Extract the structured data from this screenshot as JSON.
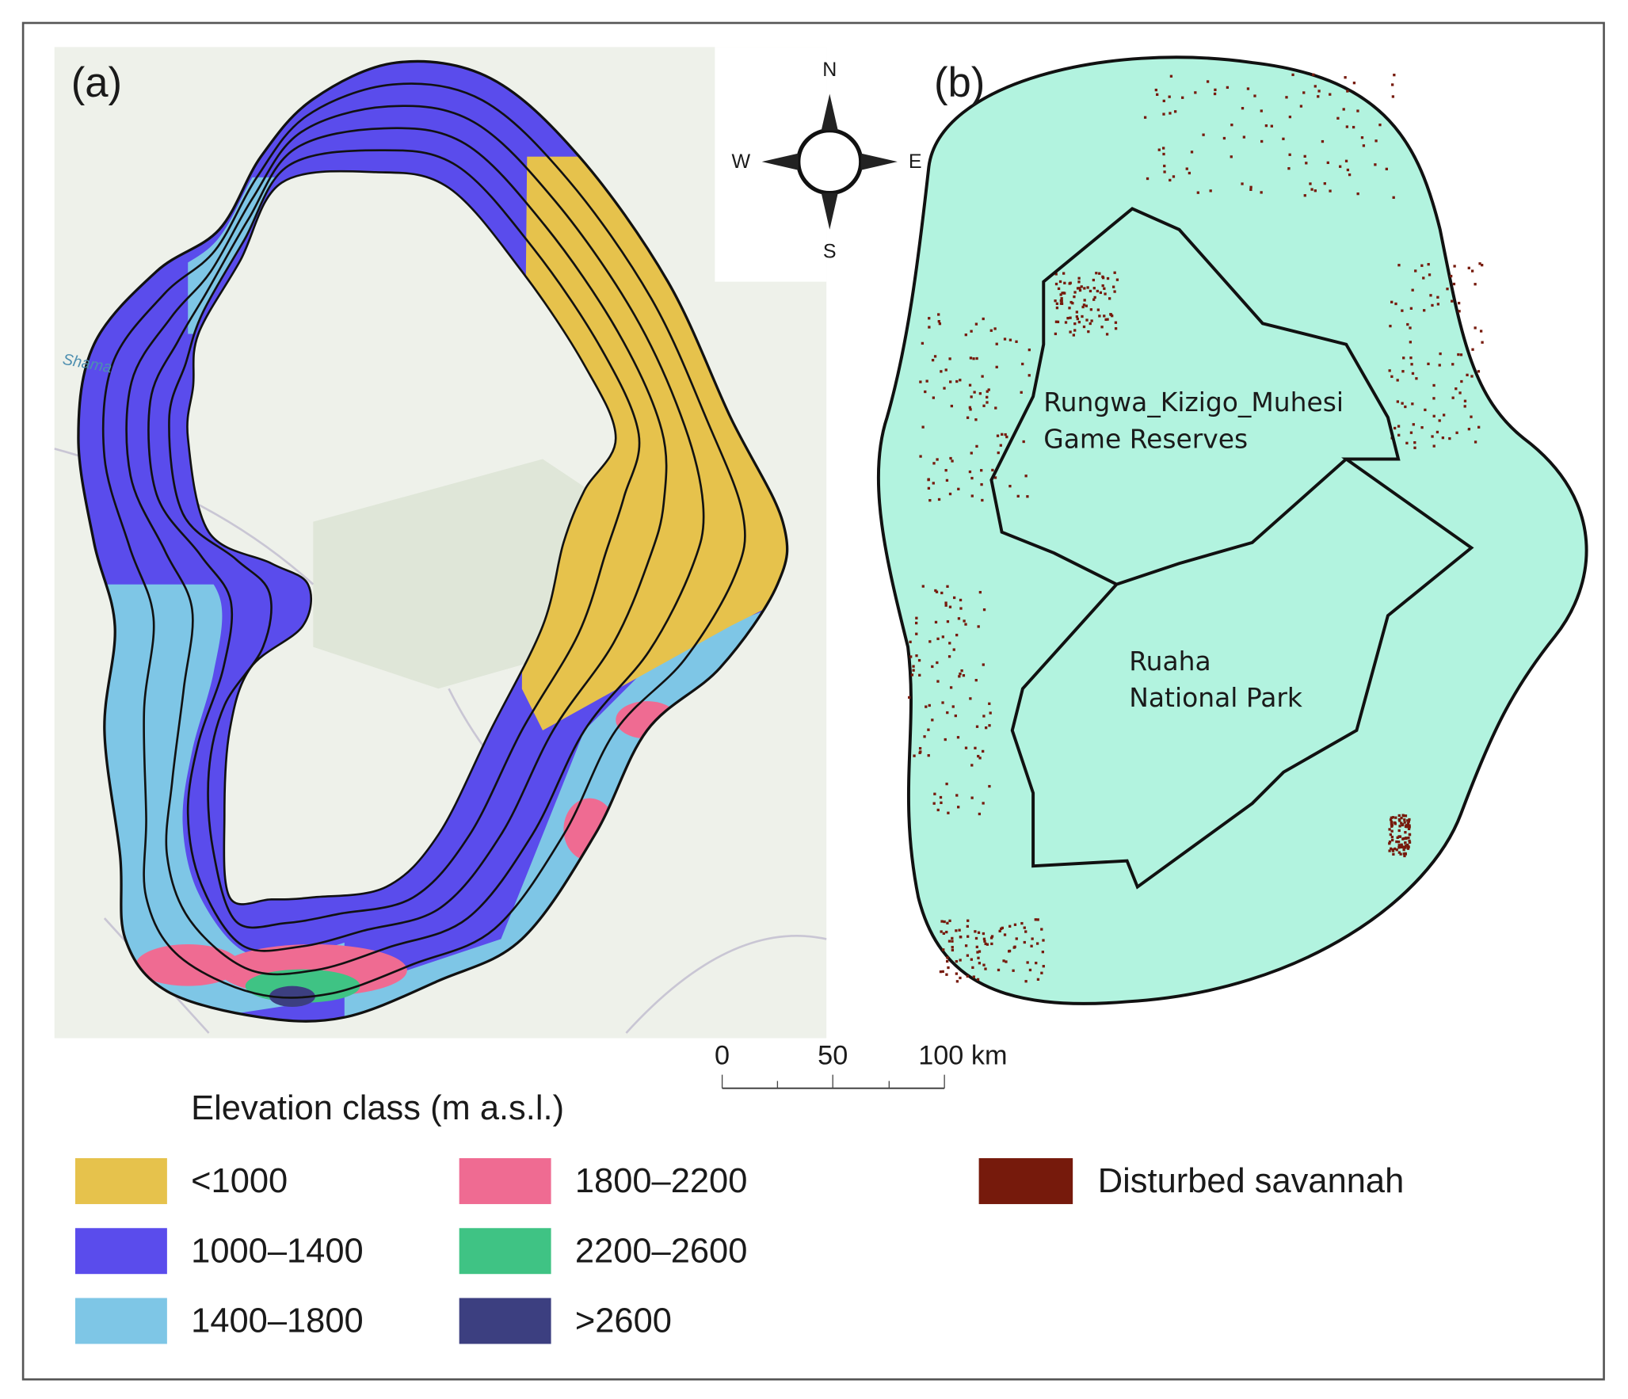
{
  "panel_a": {
    "label": "(a)",
    "map_label": "Shama"
  },
  "panel_b": {
    "label": "(b)",
    "areas": [
      {
        "lines": [
          "Rungwa_Kizigo_Muhesi",
          "Game Reserves"
        ]
      },
      {
        "lines": [
          "Ruaha",
          "National Park"
        ]
      }
    ]
  },
  "compass": {
    "north": "N",
    "south": "S",
    "west": "W",
    "east": "E"
  },
  "scale_bar": {
    "labels": [
      "0",
      "50",
      "100 km"
    ]
  },
  "legend": {
    "title": "Elevation class (m a.s.l.)",
    "items": [
      {
        "label": "<1000",
        "color": "#e6c24c"
      },
      {
        "label": "1000–1400",
        "color": "#5a4cec"
      },
      {
        "label": "1400–1800",
        "color": "#7ec6e6"
      },
      {
        "label": "1800–2200",
        "color": "#ef6b92"
      },
      {
        "label": "2200–2600",
        "color": "#3fc384"
      },
      {
        "label": ">2600",
        "color": "#3c3f80"
      }
    ]
  },
  "savannah_legend": {
    "label": "Disturbed savannah",
    "color": "#761a0c"
  }
}
